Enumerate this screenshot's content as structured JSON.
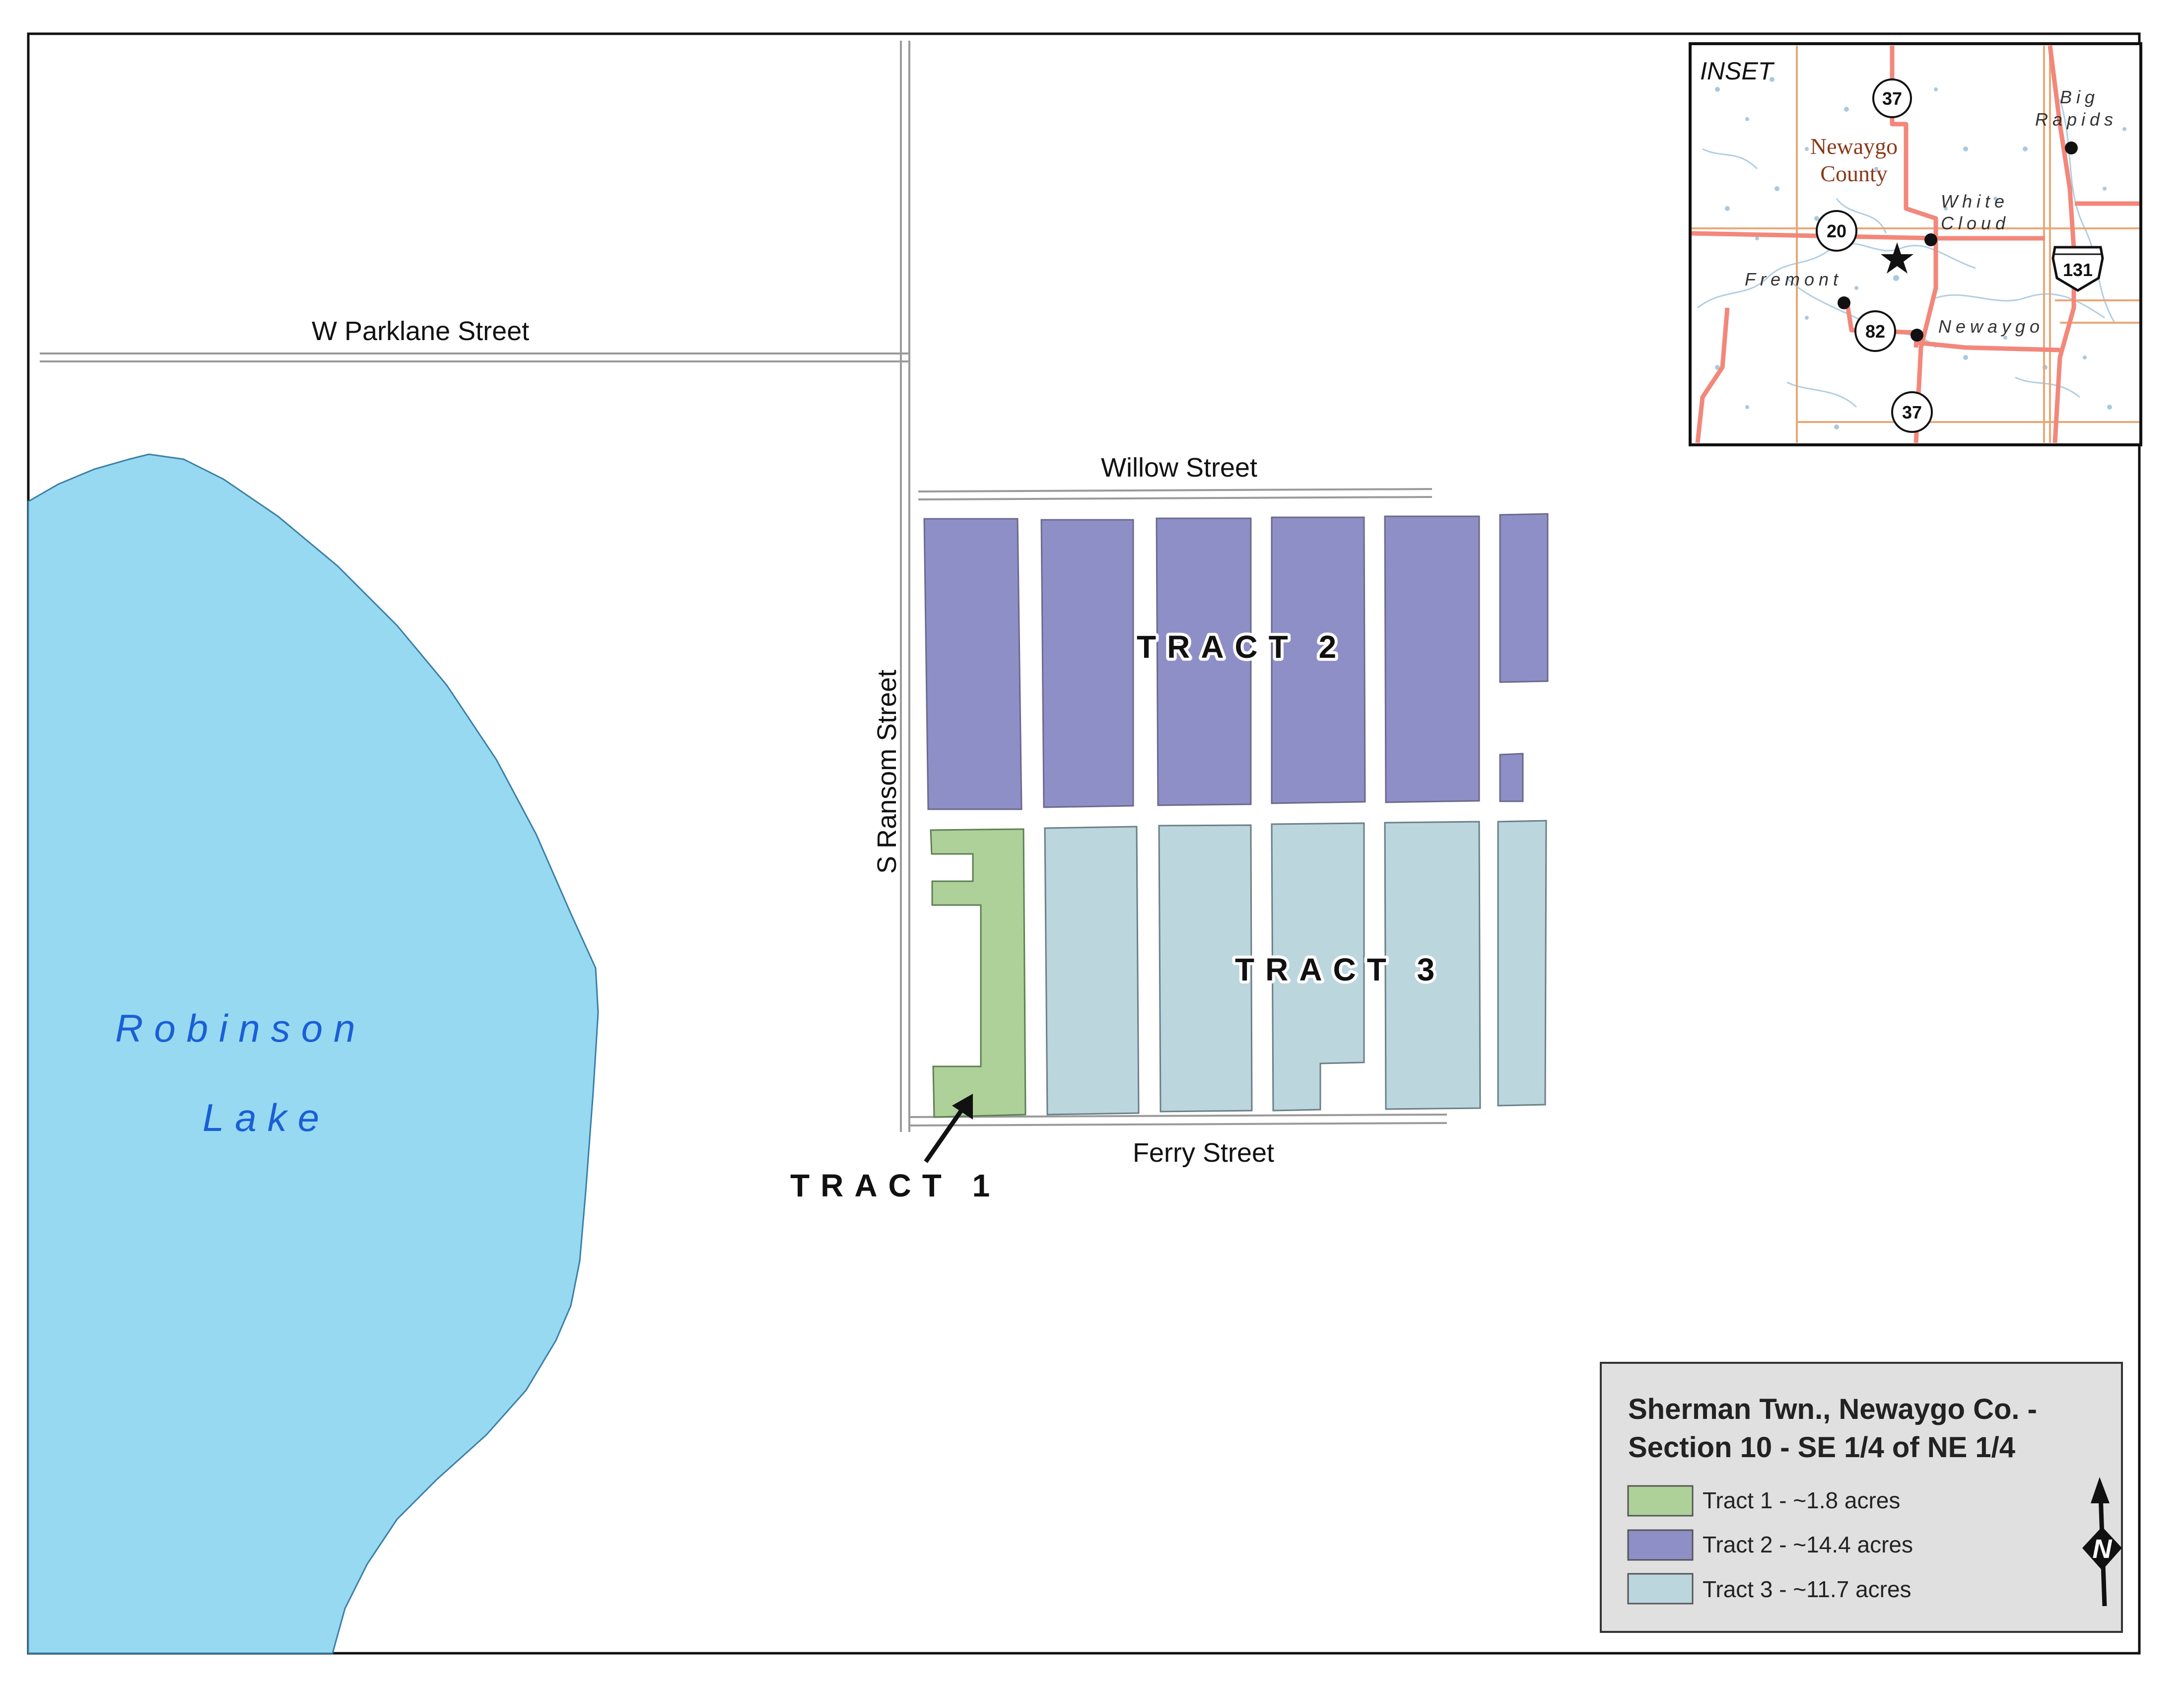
{
  "streets": {
    "parklane": "W  Parklane  Street",
    "willow": "Willow  Street",
    "ransom": "S  Ransom  Street",
    "ferry": "Ferry  Street"
  },
  "tracts": {
    "tract1_label": "TRACT  1",
    "tract2_label": "TRACT  2",
    "tract3_label": "TRACT  3"
  },
  "lake": {
    "line1": "Robinson",
    "line2": "Lake"
  },
  "inset": {
    "title": "INSET",
    "county_line1": "Newaygo",
    "county_line2": "County",
    "cities": {
      "big": "Big",
      "rapids": "Rapids",
      "white": "White",
      "cloud": "Cloud",
      "fremont": "Fremont",
      "newaygo": "Newaygo"
    },
    "shields": {
      "route37_north": "37",
      "route20": "20",
      "route131": "131",
      "route82": "82",
      "route37_south": "37"
    }
  },
  "legend": {
    "title_line1": "Sherman Twn., Newaygo Co. -",
    "title_line2": "Section 10 - SE 1/4 of NE 1/4",
    "items": [
      {
        "label": "Tract 1 - ~1.8 acres",
        "color": "#aed19a"
      },
      {
        "label": "Tract 2 - ~14.4 acres",
        "color": "#8f8fc8"
      },
      {
        "label": "Tract 3 - ~11.7 acres",
        "color": "#bcd6de"
      }
    ],
    "north_letter": "N"
  },
  "colors": {
    "lake": "#97d9f0",
    "tract1": "#aed19a",
    "tract2": "#8f8fc8",
    "tract3": "#bcd6de",
    "inset_roads": "#f2877a",
    "inset_bounds": "#e8a878",
    "inset_water": "#a9c9e0"
  }
}
